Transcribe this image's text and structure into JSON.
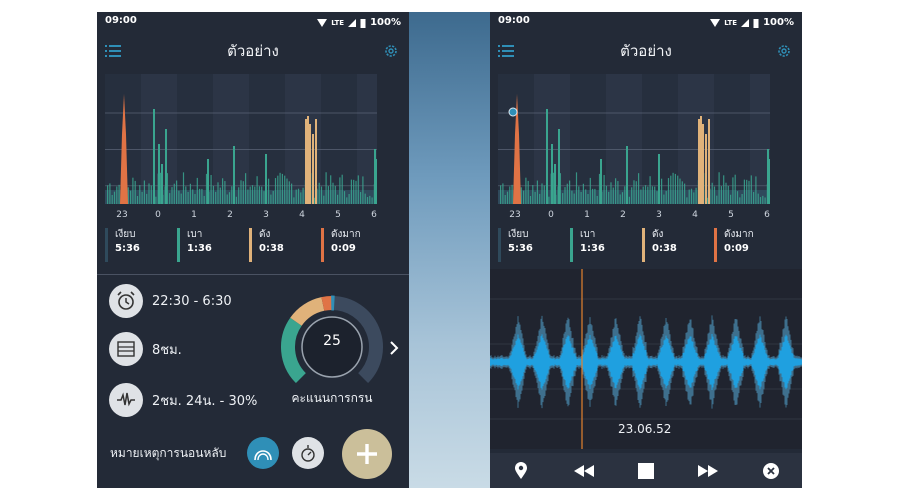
{
  "screens": [
    {
      "status": {
        "time": "09:00",
        "network": "LTE",
        "battery": "100%"
      },
      "app_title": "ตัวอย่าง",
      "hour_ticks": [
        "23",
        "0",
        "1",
        "2",
        "3",
        "4",
        "5",
        "6"
      ],
      "legend": [
        {
          "name": "เงียบ",
          "value": "5:36",
          "color": "#2f4a5c"
        },
        {
          "name": "เบา",
          "value": "1:36",
          "color": "#3aa58f"
        },
        {
          "name": "ดัง",
          "value": "0:38",
          "color": "#e0b27a"
        },
        {
          "name": "ดังมาก",
          "value": "0:09",
          "color": "#e07345"
        }
      ],
      "stats": {
        "time_range": "22:30 - 6:30",
        "duration": "8ชม.",
        "snore_stat": "2ชม. 24น. - 30%"
      },
      "score": {
        "value": "25",
        "label": "คะแนนการกรน"
      },
      "note_label": "หมายเหตุการนอนหลับ"
    },
    {
      "status": {
        "time": "09:00",
        "network": "LTE",
        "battery": "100%"
      },
      "app_title": "ตัวอย่าง",
      "hour_ticks": [
        "23",
        "0",
        "1",
        "2",
        "3",
        "4",
        "5",
        "6"
      ],
      "legend": [
        {
          "name": "เงียบ",
          "value": "5:36",
          "color": "#2f4a5c"
        },
        {
          "name": "เบา",
          "value": "1:36",
          "color": "#3aa58f"
        },
        {
          "name": "ดัง",
          "value": "0:38",
          "color": "#e0b27a"
        },
        {
          "name": "ดังมาก",
          "value": "0:09",
          "color": "#e07345"
        }
      ],
      "playback_time": "23.06.52"
    }
  ],
  "icons": {
    "menu": "menu-icon",
    "settings": "gear-icon",
    "alarm": "alarm-clock-icon",
    "bed": "bed-icon",
    "snore_wave": "waveform-icon",
    "next": "chevron-right-icon",
    "snore_tag": "snore-tag-icon",
    "note_tag": "stopwatch-icon",
    "add": "plus-icon",
    "pin": "location-pin-icon",
    "rewind": "rewind-icon",
    "stop": "stop-icon",
    "forward": "fast-forward-icon",
    "close": "close-icon"
  },
  "colors": {
    "background": "#232a37",
    "quiet": "#2f4a5c",
    "light": "#3aa58f",
    "loud": "#e0b27a",
    "epic": "#e07345",
    "accent": "#2f8fb7",
    "playhead": "#e3812f"
  }
}
